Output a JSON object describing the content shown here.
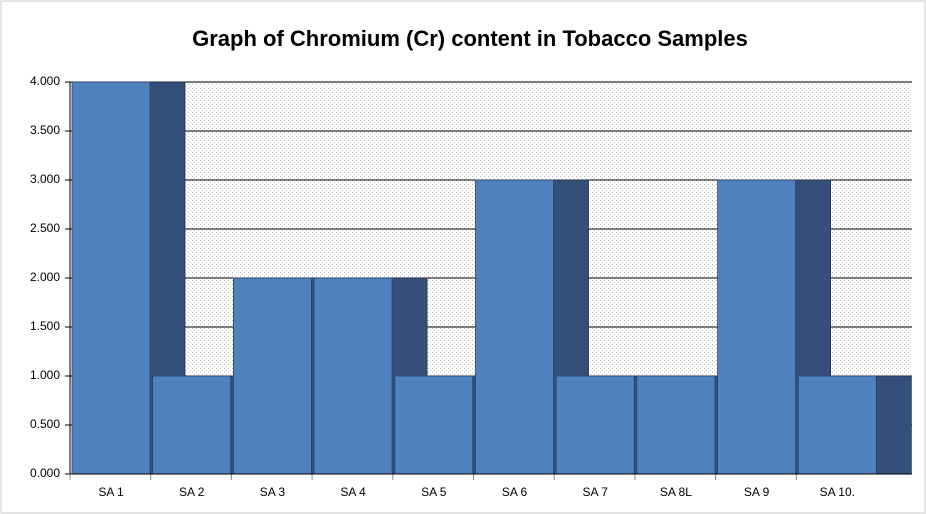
{
  "chart_data": {
    "type": "bar",
    "title": "Graph of Chromium (Cr) content in Tobacco Samples",
    "categories": [
      "SA 1",
      "SA 2",
      "SA 3",
      "SA 4",
      "SA 5",
      "SA 6",
      "SA 7",
      "SA 8L",
      "SA 9",
      "SA 10."
    ],
    "values": [
      4,
      1,
      2,
      2,
      1,
      3,
      1,
      1,
      3,
      1
    ],
    "color": "#4f81bd",
    "side_color": "#34507a",
    "ylim": [
      0,
      4
    ],
    "yticks": [
      {
        "value": 0,
        "label": "0.000"
      },
      {
        "value": 0.5,
        "label": "0.500"
      },
      {
        "value": 1,
        "label": "1.000"
      },
      {
        "value": 1.5,
        "label": "1.500"
      },
      {
        "value": 2,
        "label": "2.000"
      },
      {
        "value": 2.5,
        "label": "2.500"
      },
      {
        "value": 3,
        "label": "3.000"
      },
      {
        "value": 3.5,
        "label": "3.500"
      },
      {
        "value": 4,
        "label": "4.000"
      }
    ],
    "grid": true
  }
}
